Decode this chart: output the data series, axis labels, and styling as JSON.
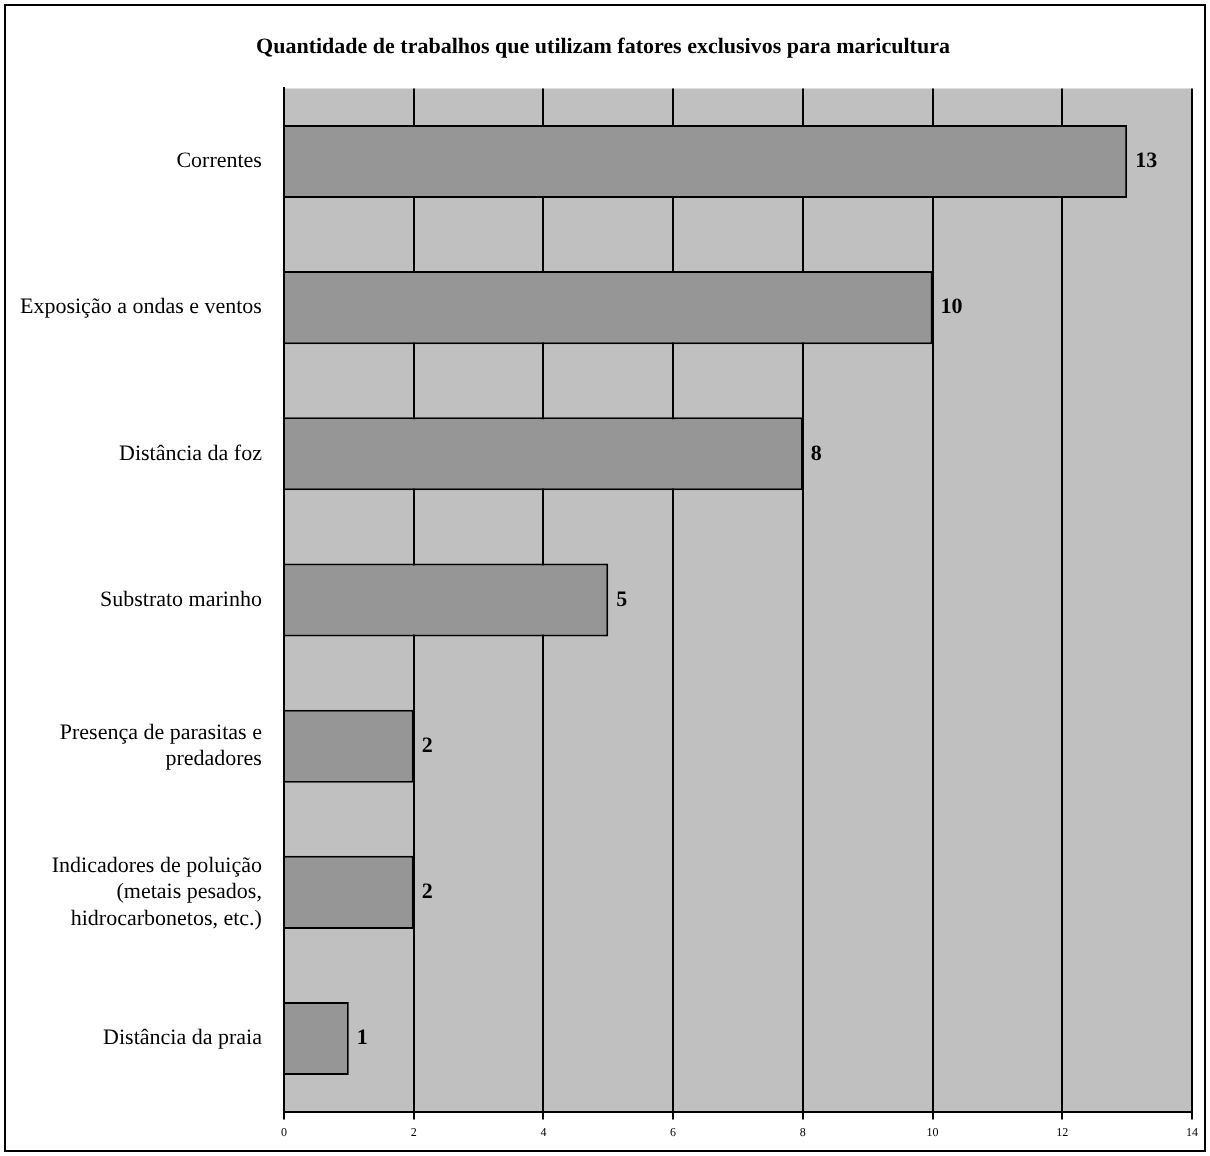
{
  "chart_data": {
    "type": "bar",
    "orientation": "horizontal",
    "title": "Quantidade de trabalhos que utilizam fatores exclusivos para maricultura",
    "categories": [
      "Correntes",
      "Exposição a ondas e ventos",
      "Distância da foz",
      "Substrato marinho",
      "Presença de parasitas e predadores",
      "Indicadores de poluição (metais pesados, hidrocarbonetos, etc.)",
      "Distância da praia"
    ],
    "values": [
      13,
      10,
      8,
      5,
      2,
      2,
      1
    ],
    "color": "#969696",
    "xlim": [
      0,
      14
    ],
    "xticks": [
      0,
      2,
      4,
      6,
      8,
      10,
      12,
      14
    ],
    "grid": "x",
    "data_labels": true
  }
}
